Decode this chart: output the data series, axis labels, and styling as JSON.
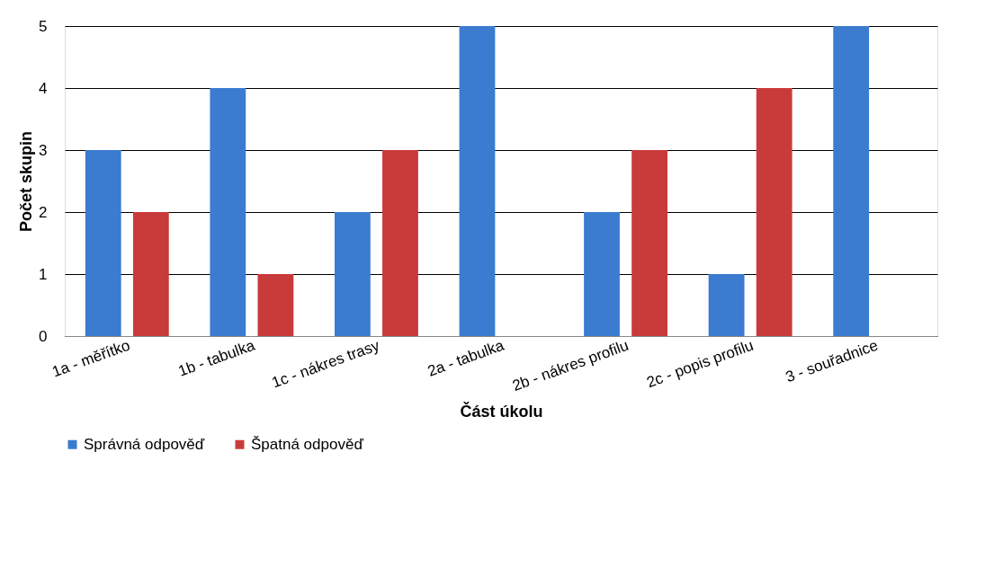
{
  "chart_data": {
    "type": "bar",
    "xlabel": "Část úkolu",
    "ylabel": "Počet skupin",
    "categories": [
      "1a - měřítko",
      "1b - tabulka",
      "1c - nákres trasy",
      "2a - tabulka",
      "2b - nákres profilu",
      "2c - popis profilu",
      "3 - souřadnice"
    ],
    "series": [
      {
        "name": "Správná odpověď",
        "color": "#3b7bd0",
        "values": [
          3,
          4,
          2,
          5,
          2,
          1,
          5
        ]
      },
      {
        "name": "Špatná odpověď",
        "color": "#c93a3a",
        "values": [
          2,
          1,
          3,
          0,
          3,
          4,
          0
        ]
      }
    ],
    "ylim": [
      0,
      5
    ],
    "yticks": [
      0,
      1,
      2,
      3,
      4,
      5
    ],
    "grid": "y",
    "legend": "bottom"
  }
}
